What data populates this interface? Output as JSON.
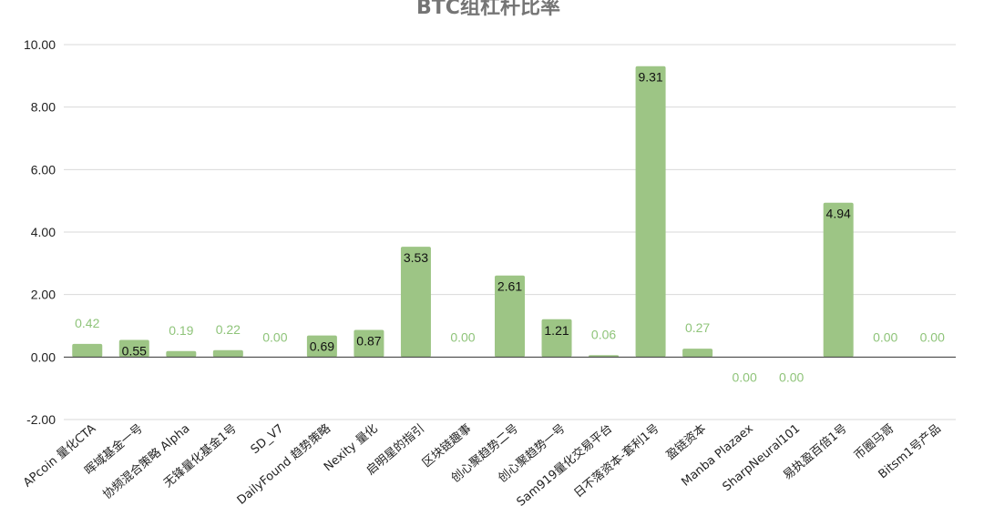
{
  "chart_data": {
    "type": "bar",
    "title": "BTC组杠杆比率",
    "xlabel": "",
    "ylabel": "",
    "ylim": [
      -2,
      10
    ],
    "yticks": [
      "10.00",
      "8.00",
      "6.00",
      "4.00",
      "2.00",
      "0.00",
      "-2.00"
    ],
    "grid": true,
    "legend": "none",
    "bar_color": "#9dc585",
    "categories": [
      "APcoin 量化CTA",
      "晖域基金一号",
      "协频混合策略 Alpha",
      "无锋量化基金1号",
      "SD_V7",
      "DailyFound 趋势策略",
      "Nexity 量化",
      "启明星的指引",
      "区块链趣事",
      "创心聚趋势二号",
      "创心聚趋势一号",
      "Sam919量化交易平台",
      "日不落资本-套利1号",
      "盈链资本",
      "Manba Plazaex",
      "SharpNeural101",
      "易执盈百倍1号",
      "币圈马哥",
      "Bitsm1号产品"
    ],
    "values": [
      0.42,
      0.55,
      0.19,
      0.22,
      0.0,
      0.69,
      0.87,
      3.53,
      0.0,
      2.61,
      1.21,
      0.06,
      9.31,
      0.27,
      0.0,
      0.0,
      4.94,
      0.0,
      0.0
    ],
    "value_labels": [
      "0.42",
      "0.55",
      "0.19",
      "0.22",
      "0.00",
      "0.69",
      "0.87",
      "3.53",
      "0.00",
      "2.61",
      "1.21",
      "0.06",
      "9.31",
      "0.27",
      "0.00",
      "0.00",
      "4.94",
      "0.00",
      "0.00"
    ]
  }
}
